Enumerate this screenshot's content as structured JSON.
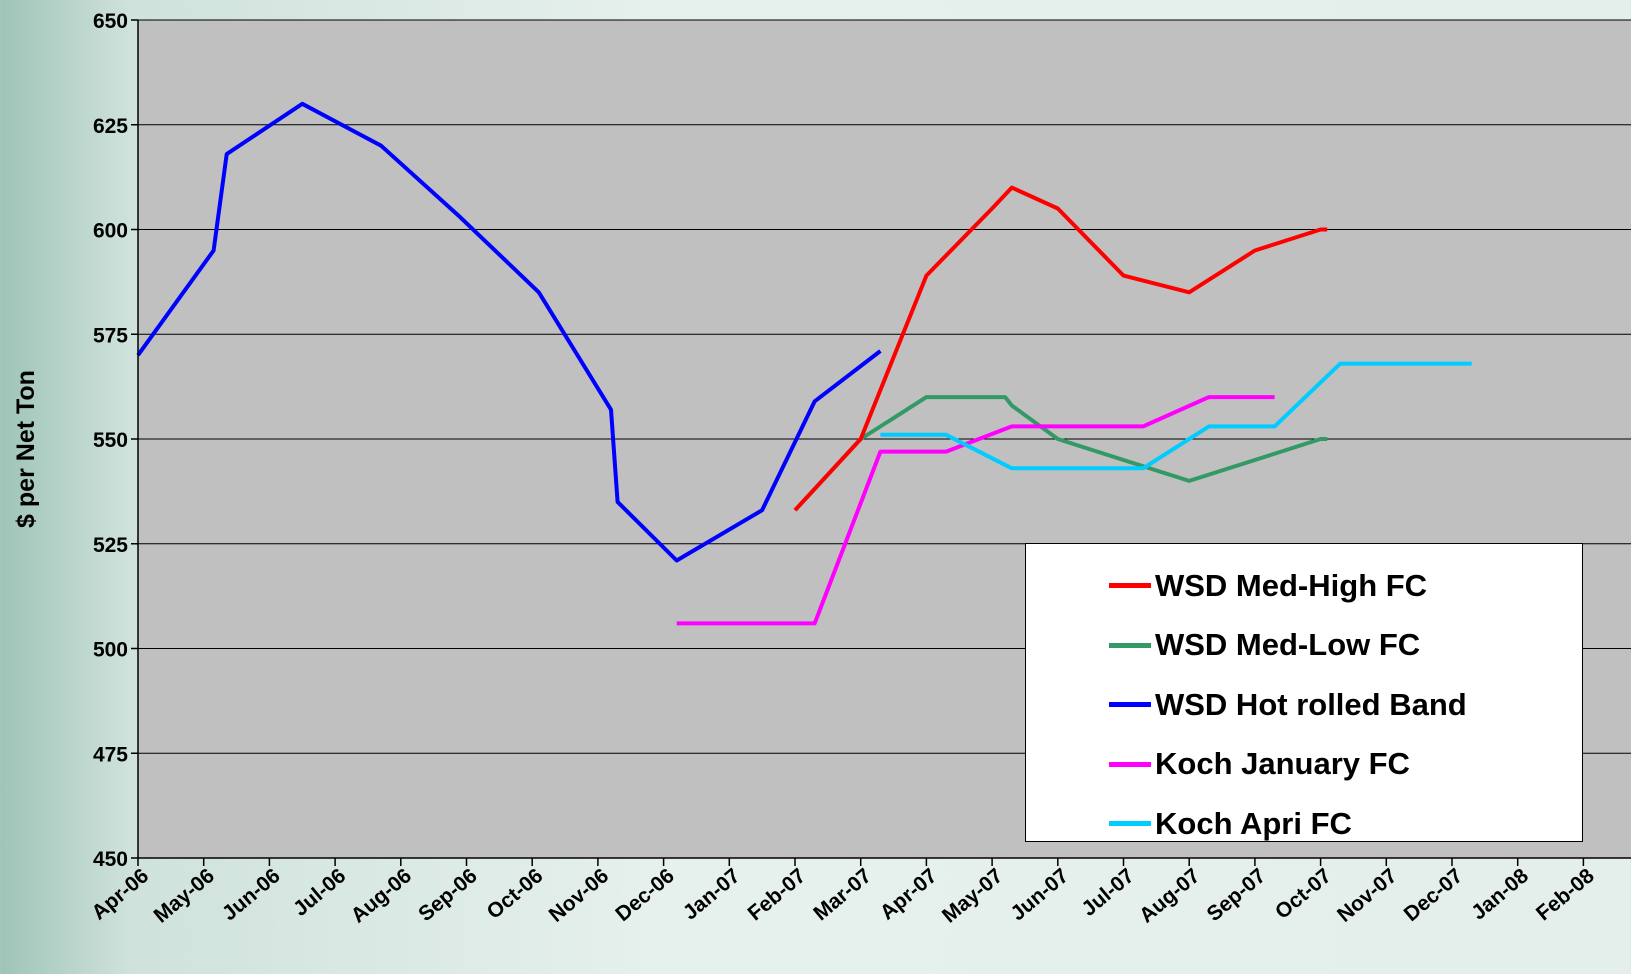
{
  "chart_data": {
    "type": "line",
    "title": "",
    "ylabel": "$ per Net Ton",
    "xlabel": "",
    "ylim": [
      450,
      650
    ],
    "yticks": [
      450,
      475,
      500,
      525,
      550,
      575,
      600,
      625,
      650
    ],
    "x_categories": [
      "Apr-06",
      "May-06",
      "Jun-06",
      "Jul-06",
      "Aug-06",
      "Sep-06",
      "Oct-06",
      "Nov-06",
      "Dec-06",
      "Jan-07",
      "Feb-07",
      "Mar-07",
      "Apr-07",
      "May-07",
      "Jun-07",
      "Jul-07",
      "Aug-07",
      "Sep-07",
      "Oct-07",
      "Nov-07",
      "Dec-07",
      "Jan-08",
      "Feb-08"
    ],
    "grid": "horizontal",
    "plot_background": "#c0c0c0",
    "legend_position": "bottom-right",
    "series": [
      {
        "name": "WSD Med-High FC",
        "color": "#ff0000",
        "points": [
          [
            10,
            533
          ],
          [
            11,
            550
          ],
          [
            12,
            589
          ],
          [
            13,
            605
          ],
          [
            13.3,
            610
          ],
          [
            14,
            605
          ],
          [
            15,
            589
          ],
          [
            16,
            585
          ],
          [
            17,
            595
          ],
          [
            18,
            600
          ],
          [
            18.1,
            600
          ]
        ]
      },
      {
        "name": "WSD Med-Low FC",
        "color": "#339966",
        "points": [
          [
            10,
            533
          ],
          [
            11,
            550
          ],
          [
            12,
            560
          ],
          [
            13.2,
            560
          ],
          [
            13.3,
            558
          ],
          [
            14,
            550
          ],
          [
            15,
            545
          ],
          [
            16,
            540
          ],
          [
            17,
            545
          ],
          [
            18,
            550
          ],
          [
            18.1,
            550
          ]
        ]
      },
      {
        "name": "WSD Hot rolled Band",
        "color": "#0000ff",
        "points": [
          [
            0,
            570
          ],
          [
            1.15,
            595
          ],
          [
            1.35,
            618
          ],
          [
            2.5,
            630
          ],
          [
            3.7,
            620
          ],
          [
            4.9,
            603
          ],
          [
            6.1,
            585
          ],
          [
            7.2,
            557
          ],
          [
            7.3,
            535
          ],
          [
            8.2,
            521
          ],
          [
            9.5,
            533
          ],
          [
            10.3,
            559
          ],
          [
            11.3,
            571
          ]
        ]
      },
      {
        "name": "Koch January FC",
        "color": "#ff00ff",
        "points": [
          [
            8.2,
            506
          ],
          [
            10.3,
            506
          ],
          [
            11.3,
            547
          ],
          [
            12.3,
            547
          ],
          [
            13.3,
            553
          ],
          [
            14.3,
            553
          ],
          [
            15.3,
            553
          ],
          [
            16.3,
            560
          ],
          [
            17.3,
            560
          ]
        ]
      },
      {
        "name": "Koch Apri FC",
        "color": "#00ccff",
        "points": [
          [
            11.3,
            551
          ],
          [
            12.3,
            551
          ],
          [
            13.3,
            543
          ],
          [
            14.3,
            543
          ],
          [
            15.3,
            543
          ],
          [
            16.3,
            553
          ],
          [
            17.3,
            553
          ],
          [
            18.3,
            568
          ],
          [
            19.3,
            568
          ],
          [
            20.3,
            568
          ]
        ]
      }
    ]
  }
}
